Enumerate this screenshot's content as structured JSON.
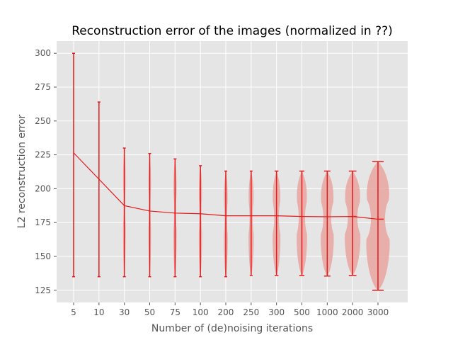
{
  "chart_data": {
    "type": "violin",
    "title": "Reconstruction error of the images (normalized in ??)",
    "xlabel": "Number of (de)noising iterations",
    "ylabel": "L2 reconstruction error",
    "categories": [
      "5",
      "10",
      "30",
      "50",
      "75",
      "100",
      "200",
      "250",
      "300",
      "500",
      "1000",
      "2000",
      "3000"
    ],
    "ylim": [
      116,
      309
    ],
    "yticks": [
      125,
      150,
      175,
      200,
      225,
      250,
      275,
      300
    ],
    "grid": true,
    "mean_line": [
      226.5,
      207.0,
      187.5,
      183.5,
      182.0,
      181.5,
      180.0,
      180.0,
      180.0,
      179.5,
      179.3,
      179.5,
      177.5
    ],
    "violins": [
      {
        "category": "5",
        "min": 135,
        "max": 300,
        "median": 226.5,
        "max_width": 1.0
      },
      {
        "category": "10",
        "min": 135,
        "max": 264,
        "median": 207.0,
        "max_width": 1.5
      },
      {
        "category": "30",
        "min": 135,
        "max": 230,
        "median": 187.5,
        "max_width": 2
      },
      {
        "category": "50",
        "min": 135,
        "max": 226,
        "median": 183.5,
        "max_width": 2
      },
      {
        "category": "75",
        "min": 135,
        "max": 222,
        "median": 182.0,
        "max_width": 2.5
      },
      {
        "category": "100",
        "min": 135,
        "max": 217,
        "median": 181.5,
        "max_width": 2.5
      },
      {
        "category": "200",
        "min": 135,
        "max": 213,
        "median": 180.0,
        "max_width": 3
      },
      {
        "category": "250",
        "min": 136,
        "max": 213,
        "median": 180.0,
        "max_width": 4
      },
      {
        "category": "300",
        "min": 136,
        "max": 213,
        "median": 180.0,
        "max_width": 6
      },
      {
        "category": "500",
        "min": 136,
        "max": 213,
        "median": 179.5,
        "max_width": 8
      },
      {
        "category": "1000",
        "min": 135.5,
        "max": 213,
        "median": 179.3,
        "max_width": 10
      },
      {
        "category": "2000",
        "min": 136,
        "max": 213,
        "median": 179.5,
        "max_width": 12
      },
      {
        "category": "3000",
        "min": 125,
        "max": 220,
        "median": 177.5,
        "max_width": 18
      }
    ],
    "colors": {
      "line": "#e41a1c",
      "violin_fill": "#e8a09a",
      "plot_bg": "#e5e5e5",
      "grid": "#ffffff"
    }
  }
}
